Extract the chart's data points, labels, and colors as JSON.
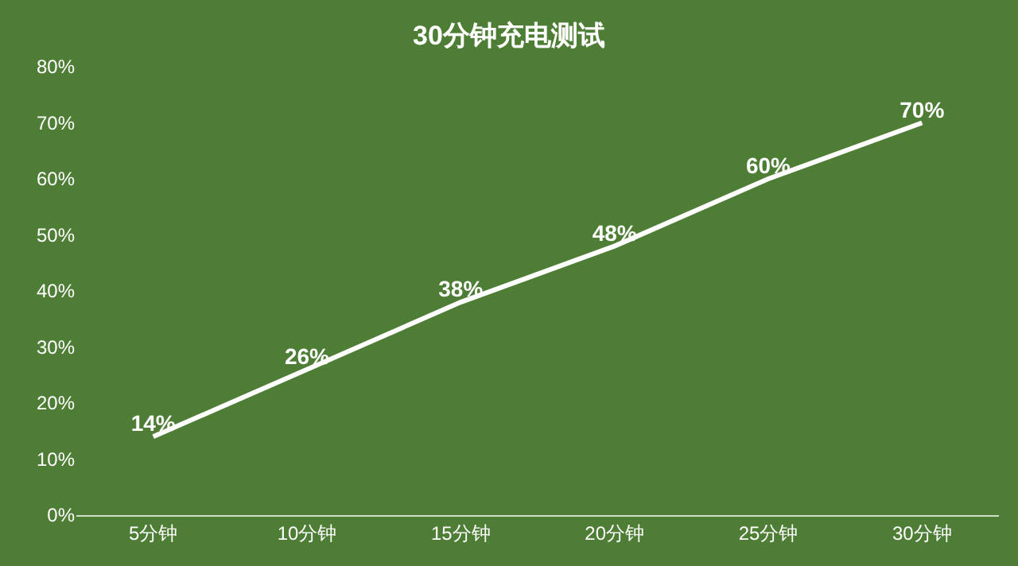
{
  "chart_data": {
    "type": "line",
    "title": "30分钟充电测试",
    "categories": [
      "5分钟",
      "10分钟",
      "15分钟",
      "20分钟",
      "25分钟",
      "30分钟"
    ],
    "series": [
      {
        "color": "#ffffff",
        "values": [
          14,
          26,
          38,
          48,
          60,
          70
        ],
        "value_labels": [
          "14%",
          "26%",
          "38%",
          "48%",
          "60%",
          "70%"
        ]
      }
    ],
    "ylim": [
      0,
      80
    ],
    "yticks": [
      {
        "value": 0,
        "label": "0%"
      },
      {
        "value": 10,
        "label": "10%"
      },
      {
        "value": 20,
        "label": "20%"
      },
      {
        "value": 30,
        "label": "30%"
      },
      {
        "value": 40,
        "label": "40%"
      },
      {
        "value": 50,
        "label": "50%"
      },
      {
        "value": 60,
        "label": "60%"
      },
      {
        "value": 70,
        "label": "70%"
      },
      {
        "value": 80,
        "label": "80%"
      }
    ],
    "grid": false,
    "marker": "none",
    "line_style": "solid"
  }
}
